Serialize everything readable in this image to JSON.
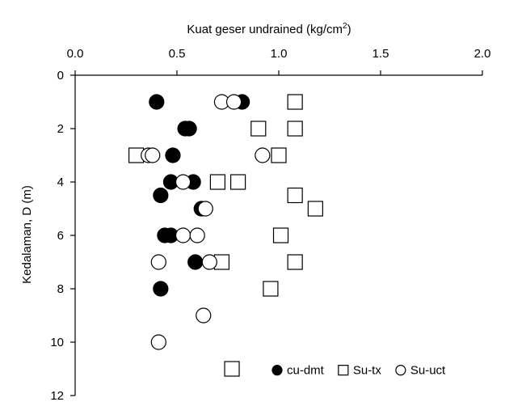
{
  "chart_data": {
    "type": "scatter",
    "title": "",
    "xlabel": "Kuat geser undrained (kg/cm",
    "xlabel_sup": "2",
    "xlabel_suffix": ")",
    "ylabel": "Kedalaman, D (m)",
    "x_axis_position": "top",
    "y_inverted": true,
    "xlim": [
      0.0,
      2.0
    ],
    "ylim": [
      0,
      12
    ],
    "x_ticks": [
      "0.0",
      "0.5",
      "1.0",
      "1.5",
      "2.0"
    ],
    "y_ticks": [
      "0",
      "2",
      "4",
      "6",
      "8",
      "10",
      "12"
    ],
    "grid": false,
    "legend_position": "bottom-right",
    "series": [
      {
        "name": "cu-dmt",
        "marker": "filled-circle",
        "color": "#000000",
        "points": [
          {
            "x": 0.4,
            "y": 1.0
          },
          {
            "x": 0.82,
            "y": 1.0
          },
          {
            "x": 0.54,
            "y": 2.0
          },
          {
            "x": 0.56,
            "y": 2.0
          },
          {
            "x": 0.48,
            "y": 3.0
          },
          {
            "x": 0.47,
            "y": 4.0
          },
          {
            "x": 0.58,
            "y": 4.0
          },
          {
            "x": 0.42,
            "y": 4.5
          },
          {
            "x": 0.62,
            "y": 5.0
          },
          {
            "x": 0.44,
            "y": 6.0
          },
          {
            "x": 0.47,
            "y": 6.0
          },
          {
            "x": 0.59,
            "y": 7.0
          },
          {
            "x": 0.42,
            "y": 8.0
          }
        ]
      },
      {
        "name": "Su-tx",
        "marker": "open-square",
        "color": "#000000",
        "points": [
          {
            "x": 1.08,
            "y": 1.0
          },
          {
            "x": 0.9,
            "y": 2.0
          },
          {
            "x": 1.08,
            "y": 2.0
          },
          {
            "x": 0.3,
            "y": 3.0
          },
          {
            "x": 1.0,
            "y": 3.0
          },
          {
            "x": 0.7,
            "y": 4.0
          },
          {
            "x": 0.8,
            "y": 4.0
          },
          {
            "x": 1.08,
            "y": 4.5
          },
          {
            "x": 1.18,
            "y": 5.0
          },
          {
            "x": 1.01,
            "y": 6.0
          },
          {
            "x": 0.72,
            "y": 7.0
          },
          {
            "x": 1.08,
            "y": 7.0
          },
          {
            "x": 0.96,
            "y": 8.0
          },
          {
            "x": 0.77,
            "y": 11.0
          }
        ]
      },
      {
        "name": "Su-uct",
        "marker": "open-circle",
        "color": "#000000",
        "points": [
          {
            "x": 0.72,
            "y": 1.0
          },
          {
            "x": 0.78,
            "y": 1.0
          },
          {
            "x": 0.36,
            "y": 3.0
          },
          {
            "x": 0.38,
            "y": 3.0
          },
          {
            "x": 0.92,
            "y": 3.0
          },
          {
            "x": 0.53,
            "y": 4.0
          },
          {
            "x": 0.64,
            "y": 5.0
          },
          {
            "x": 0.53,
            "y": 6.0
          },
          {
            "x": 0.6,
            "y": 6.0
          },
          {
            "x": 0.41,
            "y": 7.0
          },
          {
            "x": 0.66,
            "y": 7.0
          },
          {
            "x": 0.63,
            "y": 9.0
          },
          {
            "x": 0.41,
            "y": 10.0
          }
        ]
      }
    ]
  }
}
